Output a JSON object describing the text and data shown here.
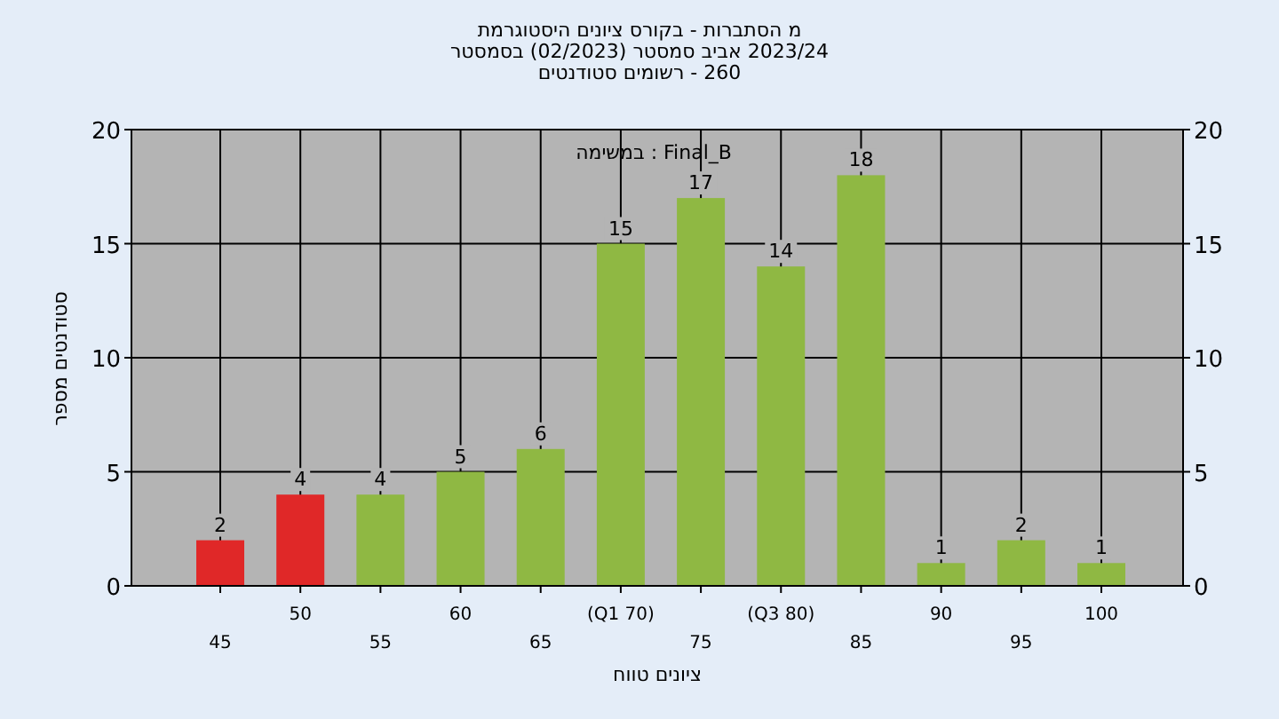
{
  "chart_data": {
    "type": "bar",
    "title": "היסטוגרמת ציונים בקורס - הסתברות מ",
    "subtitle": "בסמסטר (02/2023) סמסטר אביב 2023/24",
    "annotations": [
      "סטודנטים רשומים - 260",
      "במשימה : Final_B"
    ],
    "xlabel": "טווח ציונים",
    "ylabel": "מספר סטודנטים",
    "categories": [
      "45",
      "50",
      "55",
      "60",
      "65",
      "(Q1 70)",
      "75",
      "(Q3 80)",
      "85",
      "90",
      "95",
      "100"
    ],
    "values": [
      2,
      4,
      4,
      5,
      6,
      15,
      17,
      14,
      18,
      1,
      2,
      1
    ],
    "colors": [
      "#e02828",
      "#e02828",
      "#8fb843",
      "#8fb843",
      "#8fb843",
      "#8fb843",
      "#8fb843",
      "#8fb843",
      "#8fb843",
      "#8fb843",
      "#8fb843",
      "#8fb843"
    ],
    "ylim": [
      0,
      20
    ],
    "yticks": [
      0,
      5,
      10,
      15,
      20
    ],
    "y2lim": [
      0,
      20
    ],
    "y2ticks": [
      0,
      5,
      10,
      15,
      20
    ],
    "grid": true,
    "data_labels": true
  }
}
